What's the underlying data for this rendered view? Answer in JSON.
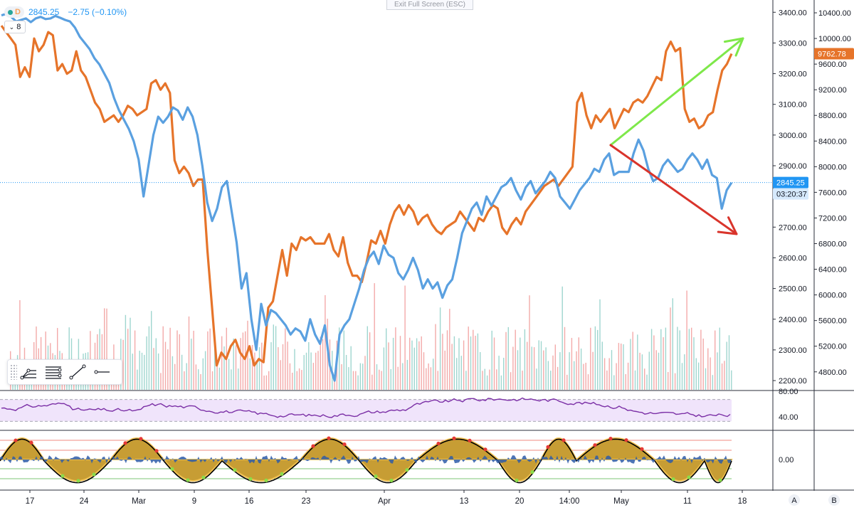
{
  "header": {
    "period_letter": "D",
    "price": "2845.25",
    "change": "−2.75 (−0.10%)",
    "interval_label": "8",
    "exit_fullscreen": "Exit Full Screen (ESC)"
  },
  "tags": {
    "orange_last": "9762.78",
    "blue_last": "2845.25",
    "countdown": "03:20:37"
  },
  "colors": {
    "blue": "#5aa0e0",
    "orange": "#e6742a",
    "green_arrow": "#7ee84a",
    "red_arrow": "#d9342b",
    "vol_up": "#9fd6cf",
    "vol_down": "#f3aaa9",
    "rsi": "#7b2fa6",
    "rsi_band": "#f0e4fb",
    "osc_fill": "#c79d34",
    "osc_blue": "#2f5da8"
  },
  "chart_data": [
    {
      "type": "line",
      "title": "",
      "x_ticks": [
        "17",
        "24",
        "Mar",
        "9",
        "16",
        "23",
        "Apr",
        "13",
        "20",
        "14:00",
        "May",
        "11",
        "18"
      ],
      "y_left_ticks": [
        "3400.00",
        "3300.00",
        "3200.00",
        "3100.00",
        "3000.00",
        "2900.00",
        "2800.00",
        "2700.00",
        "2600.00",
        "2500.00",
        "2400.00",
        "2300.00",
        "2200.00"
      ],
      "y_right_ticks": [
        "10400.00",
        "10000.00",
        "9600.00",
        "9200.00",
        "8800.00",
        "8400.00",
        "8000.00",
        "7600.00",
        "7200.00",
        "6800.00",
        "6400.00",
        "6000.00",
        "5600.00",
        "5200.00",
        "4800.00"
      ],
      "ylim_left": [
        2170,
        3440
      ],
      "ylim_right": [
        4520,
        10600
      ],
      "series": [
        {
          "axis": "left",
          "values": [
            3390,
            3395,
            3385,
            3370,
            3375,
            3380,
            3368,
            3380,
            3385,
            3378,
            3380,
            3388,
            3382,
            3375,
            3370,
            3350,
            3320,
            3300,
            3280,
            3250,
            3230,
            3200,
            3170,
            3120,
            3080,
            3050,
            3020,
            2980,
            2920,
            2800,
            2900,
            3000,
            3060,
            3040,
            3060,
            3090,
            3080,
            3050,
            3090,
            3060,
            3000,
            2900,
            2780,
            2720,
            2760,
            2830,
            2850,
            2750,
            2650,
            2500,
            2550,
            2400,
            2300,
            2450,
            2380,
            2430,
            2420,
            2400,
            2380,
            2350,
            2370,
            2360,
            2330,
            2400,
            2350,
            2320,
            2380,
            2250,
            2200,
            2350,
            2380,
            2400,
            2450,
            2500,
            2560,
            2600,
            2620,
            2580,
            2640,
            2610,
            2600,
            2550,
            2530,
            2560,
            2600,
            2560,
            2500,
            2530,
            2500,
            2520,
            2470,
            2510,
            2530,
            2600,
            2680,
            2720,
            2760,
            2780,
            2740,
            2800,
            2770,
            2800,
            2830,
            2840,
            2860,
            2820,
            2790,
            2830,
            2850,
            2810,
            2830,
            2850,
            2880,
            2860,
            2800,
            2780,
            2760,
            2790,
            2820,
            2840,
            2860,
            2890,
            2880,
            2920,
            2940,
            2870,
            2880,
            2880,
            2880,
            2940,
            2985,
            2950,
            2890,
            2850,
            2860,
            2900,
            2920,
            2900,
            2880,
            2890,
            2920,
            2940,
            2920,
            2890,
            2920,
            2870,
            2860,
            2760,
            2820,
            2845
          ],
          "x_positions_note_omitted": true
        },
        {
          "axis": "right",
          "values": [
            10200,
            10100,
            10000,
            9900,
            9400,
            9550,
            9400,
            10000,
            9800,
            9900,
            10100,
            10050,
            9500,
            9600,
            9450,
            9500,
            9800,
            9500,
            9400,
            9200,
            9000,
            8900,
            8700,
            8750,
            8800,
            8700,
            8800,
            8950,
            8900,
            8800,
            8850,
            8900,
            9300,
            9350,
            9200,
            9300,
            9150,
            8100,
            7900,
            8000,
            7900,
            7700,
            7800,
            7800,
            6700,
            5800,
            4900,
            5100,
            5000,
            5200,
            5300,
            5100,
            5000,
            5200,
            4900,
            5000,
            4950,
            5800,
            5900,
            6300,
            6700,
            6300,
            6800,
            6700,
            6900,
            6850,
            6900,
            6800,
            6800,
            6800,
            6950,
            6700,
            6600,
            6900,
            6500,
            6300,
            6300,
            6200,
            6500,
            6850,
            6800,
            7000,
            6800,
            7100,
            7300,
            7400,
            7250,
            7400,
            7300,
            7100,
            7200,
            7250,
            7100,
            7000,
            6950,
            7050,
            7100,
            7150,
            7300,
            7200,
            7100,
            7000,
            7200,
            7150,
            7300,
            7400,
            7350,
            7050,
            6950,
            7100,
            7200,
            7100,
            7300,
            7400,
            7500,
            7600,
            7700,
            7750,
            7800,
            7700,
            7800,
            7900,
            8000,
            9000,
            9150,
            8800,
            8600,
            8800,
            8700,
            8800,
            8900,
            8600,
            8750,
            8900,
            8850,
            9000,
            9050,
            9000,
            9100,
            9250,
            9400,
            9350,
            9800,
            9950,
            9800,
            9850,
            8900,
            8700,
            8750,
            8600,
            8650,
            8800,
            8850,
            9200,
            9500,
            9600,
            9762
          ]
        }
      ],
      "volume_bars": "decorative",
      "annotations": [
        "green-arrow",
        "red-arrow"
      ]
    },
    {
      "type": "line",
      "title": "",
      "y_ticks": [
        "80.00",
        "40.00"
      ],
      "ylim": [
        20,
        80
      ],
      "band": [
        33,
        67
      ]
    },
    {
      "type": "area",
      "title": "",
      "y_ticks": [
        "0.00"
      ]
    }
  ],
  "bottom_axis_letters": [
    "A",
    "B"
  ]
}
